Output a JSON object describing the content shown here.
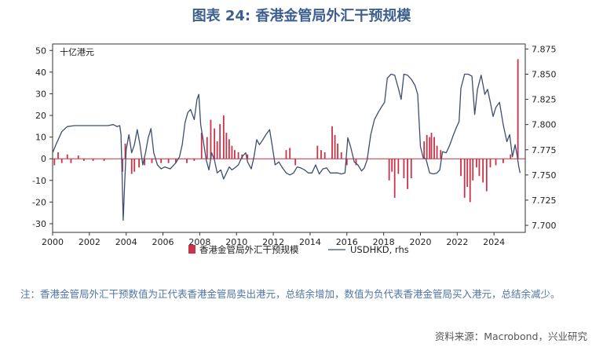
{
  "title": "图表 24: 香港金管局外汇干预规模",
  "note": "注：香港金管局外汇干预数值为正代表香港金管局卖出港元，总结余增加，数值为负代表香港金管局买入港元，总结余减少。",
  "source": "资料来源：Macrobond，兴业研究",
  "colors": {
    "bar": "#c9344a",
    "line": "#3d4e6e",
    "zero": "#cc2a3e",
    "frame": "#333333"
  },
  "chart_data": {
    "type": "bar+line",
    "unit_label": "十亿港元",
    "x_ticks": [
      "2000",
      "2002",
      "2004",
      "2006",
      "2008",
      "2010",
      "2012",
      "2014",
      "2016",
      "2018",
      "2020",
      "2022",
      "2024"
    ],
    "xlim": [
      2000,
      2025.7
    ],
    "y_left": {
      "ticks": [
        "50",
        "40",
        "30",
        "20",
        "10",
        "0",
        "-10",
        "-20",
        "-30"
      ],
      "lim": [
        -34,
        53
      ]
    },
    "y_right": {
      "ticks": [
        "7.875",
        "7.850",
        "7.825",
        "7.800",
        "7.775",
        "7.750",
        "7.725",
        "7.700"
      ],
      "lim": [
        7.693,
        7.88
      ]
    },
    "legend": [
      "香港金管局外汇干预规模",
      "USDHKD, rhs"
    ],
    "series": [
      {
        "name": "香港金管局外汇干预规模",
        "axis": "left",
        "kind": "bar",
        "points": [
          [
            2000.1,
            -3
          ],
          [
            2000.3,
            3
          ],
          [
            2000.5,
            -2
          ],
          [
            2000.8,
            2
          ],
          [
            2001.0,
            -2
          ],
          [
            2001.4,
            1.5
          ],
          [
            2001.7,
            -1
          ],
          [
            2002.2,
            -1
          ],
          [
            2002.8,
            -1
          ],
          [
            2003.8,
            -6
          ],
          [
            2003.95,
            7
          ],
          [
            2004.3,
            -7
          ],
          [
            2004.45,
            -6
          ],
          [
            2004.7,
            -4
          ],
          [
            2005.0,
            -3
          ],
          [
            2005.4,
            -2
          ],
          [
            2005.9,
            -2
          ],
          [
            2006.3,
            -2
          ],
          [
            2006.7,
            -2
          ],
          [
            2007.3,
            -2
          ],
          [
            2007.7,
            -1
          ],
          [
            2008.1,
            12
          ],
          [
            2008.4,
            10
          ],
          [
            2008.6,
            18
          ],
          [
            2008.8,
            14
          ],
          [
            2008.95,
            8
          ],
          [
            2009.1,
            16
          ],
          [
            2009.3,
            20
          ],
          [
            2009.45,
            12
          ],
          [
            2009.6,
            9
          ],
          [
            2009.75,
            6
          ],
          [
            2009.9,
            4
          ],
          [
            2010.1,
            3
          ],
          [
            2010.3,
            2
          ],
          [
            2010.6,
            2
          ],
          [
            2012.7,
            4
          ],
          [
            2012.9,
            5
          ],
          [
            2013.2,
            -3
          ],
          [
            2014.4,
            6
          ],
          [
            2014.6,
            4
          ],
          [
            2014.8,
            3
          ],
          [
            2015.2,
            15
          ],
          [
            2015.35,
            11
          ],
          [
            2015.5,
            7
          ],
          [
            2015.7,
            3
          ],
          [
            2016.0,
            -3
          ],
          [
            2016.5,
            -3
          ],
          [
            2018.3,
            -10
          ],
          [
            2018.45,
            -6
          ],
          [
            2018.6,
            -18
          ],
          [
            2018.8,
            -7
          ],
          [
            2019.1,
            -9
          ],
          [
            2019.3,
            -14
          ],
          [
            2019.5,
            -9
          ],
          [
            2020.2,
            8
          ],
          [
            2020.35,
            11
          ],
          [
            2020.5,
            10
          ],
          [
            2020.6,
            12
          ],
          [
            2020.75,
            10
          ],
          [
            2020.9,
            6
          ],
          [
            2021.1,
            4
          ],
          [
            2022.2,
            -8
          ],
          [
            2022.4,
            -18
          ],
          [
            2022.55,
            -13
          ],
          [
            2022.7,
            -20
          ],
          [
            2022.85,
            -10
          ],
          [
            2023.05,
            -4
          ],
          [
            2023.2,
            -8
          ],
          [
            2023.4,
            -11
          ],
          [
            2023.6,
            -15
          ],
          [
            2023.8,
            -4
          ],
          [
            2024.1,
            -3
          ],
          [
            2024.5,
            -2
          ],
          [
            2024.9,
            2
          ],
          [
            2025.3,
            46
          ]
        ]
      },
      {
        "name": "USDHKD, rhs",
        "axis": "right",
        "kind": "line",
        "points": [
          [
            2000.0,
            7.772
          ],
          [
            2000.2,
            7.781
          ],
          [
            2000.5,
            7.793
          ],
          [
            2000.8,
            7.798
          ],
          [
            2001.2,
            7.799
          ],
          [
            2001.6,
            7.799
          ],
          [
            2002.0,
            7.799
          ],
          [
            2002.5,
            7.799
          ],
          [
            2003.0,
            7.799
          ],
          [
            2003.3,
            7.8
          ],
          [
            2003.5,
            7.798
          ],
          [
            2003.65,
            7.799
          ],
          [
            2003.72,
            7.79
          ],
          [
            2003.78,
            7.75
          ],
          [
            2003.84,
            7.705
          ],
          [
            2003.92,
            7.742
          ],
          [
            2004.0,
            7.775
          ],
          [
            2004.15,
            7.79
          ],
          [
            2004.3,
            7.772
          ],
          [
            2004.45,
            7.78
          ],
          [
            2004.6,
            7.795
          ],
          [
            2004.75,
            7.78
          ],
          [
            2004.9,
            7.76
          ],
          [
            2005.05,
            7.772
          ],
          [
            2005.2,
            7.787
          ],
          [
            2005.35,
            7.796
          ],
          [
            2005.5,
            7.772
          ],
          [
            2005.7,
            7.76
          ],
          [
            2005.9,
            7.756
          ],
          [
            2006.1,
            7.758
          ],
          [
            2006.4,
            7.756
          ],
          [
            2006.7,
            7.762
          ],
          [
            2006.9,
            7.768
          ],
          [
            2007.05,
            7.78
          ],
          [
            2007.2,
            7.802
          ],
          [
            2007.35,
            7.812
          ],
          [
            2007.5,
            7.815
          ],
          [
            2007.7,
            7.805
          ],
          [
            2007.85,
            7.825
          ],
          [
            2007.95,
            7.83
          ],
          [
            2008.05,
            7.8
          ],
          [
            2008.2,
            7.783
          ],
          [
            2008.35,
            7.765
          ],
          [
            2008.5,
            7.755
          ],
          [
            2008.65,
            7.772
          ],
          [
            2008.8,
            7.765
          ],
          [
            2008.95,
            7.752
          ],
          [
            2009.15,
            7.755
          ],
          [
            2009.3,
            7.746
          ],
          [
            2009.45,
            7.752
          ],
          [
            2009.6,
            7.758
          ],
          [
            2009.75,
            7.755
          ],
          [
            2009.9,
            7.757
          ],
          [
            2010.1,
            7.76
          ],
          [
            2010.3,
            7.768
          ],
          [
            2010.5,
            7.772
          ],
          [
            2010.6,
            7.763
          ],
          [
            2010.8,
            7.756
          ],
          [
            2010.95,
            7.768
          ],
          [
            2011.1,
            7.785
          ],
          [
            2011.25,
            7.78
          ],
          [
            2011.4,
            7.784
          ],
          [
            2011.6,
            7.79
          ],
          [
            2011.8,
            7.795
          ],
          [
            2011.95,
            7.778
          ],
          [
            2012.1,
            7.76
          ],
          [
            2012.3,
            7.763
          ],
          [
            2012.5,
            7.757
          ],
          [
            2012.7,
            7.752
          ],
          [
            2012.9,
            7.75
          ],
          [
            2013.1,
            7.752
          ],
          [
            2013.3,
            7.758
          ],
          [
            2013.5,
            7.757
          ],
          [
            2013.7,
            7.755
          ],
          [
            2013.9,
            7.752
          ],
          [
            2014.1,
            7.752
          ],
          [
            2014.3,
            7.76
          ],
          [
            2014.5,
            7.751
          ],
          [
            2014.7,
            7.756
          ],
          [
            2014.9,
            7.757
          ],
          [
            2015.1,
            7.752
          ],
          [
            2015.3,
            7.752
          ],
          [
            2015.5,
            7.752
          ],
          [
            2015.7,
            7.751
          ],
          [
            2015.9,
            7.752
          ],
          [
            2016.05,
            7.787
          ],
          [
            2016.2,
            7.778
          ],
          [
            2016.4,
            7.763
          ],
          [
            2016.6,
            7.76
          ],
          [
            2016.8,
            7.754
          ],
          [
            2016.95,
            7.757
          ],
          [
            2017.1,
            7.765
          ],
          [
            2017.3,
            7.79
          ],
          [
            2017.5,
            7.805
          ],
          [
            2017.7,
            7.812
          ],
          [
            2017.9,
            7.818
          ],
          [
            2018.05,
            7.822
          ],
          [
            2018.2,
            7.846
          ],
          [
            2018.4,
            7.85
          ],
          [
            2018.6,
            7.849
          ],
          [
            2018.8,
            7.836
          ],
          [
            2018.95,
            7.825
          ],
          [
            2019.1,
            7.85
          ],
          [
            2019.3,
            7.849
          ],
          [
            2019.5,
            7.845
          ],
          [
            2019.7,
            7.839
          ],
          [
            2019.85,
            7.83
          ],
          [
            2020.0,
            7.778
          ],
          [
            2020.15,
            7.767
          ],
          [
            2020.3,
            7.766
          ],
          [
            2020.5,
            7.752
          ],
          [
            2020.7,
            7.751
          ],
          [
            2020.9,
            7.752
          ],
          [
            2021.05,
            7.755
          ],
          [
            2021.2,
            7.773
          ],
          [
            2021.4,
            7.772
          ],
          [
            2021.6,
            7.78
          ],
          [
            2021.8,
            7.79
          ],
          [
            2021.95,
            7.797
          ],
          [
            2022.1,
            7.803
          ],
          [
            2022.2,
            7.836
          ],
          [
            2022.4,
            7.85
          ],
          [
            2022.6,
            7.85
          ],
          [
            2022.8,
            7.848
          ],
          [
            2022.95,
            7.81
          ],
          [
            2023.1,
            7.835
          ],
          [
            2023.3,
            7.849
          ],
          [
            2023.5,
            7.83
          ],
          [
            2023.65,
            7.835
          ],
          [
            2023.8,
            7.822
          ],
          [
            2023.95,
            7.808
          ],
          [
            2024.1,
            7.817
          ],
          [
            2024.3,
            7.822
          ],
          [
            2024.5,
            7.8
          ],
          [
            2024.7,
            7.783
          ],
          [
            2024.85,
            7.79
          ],
          [
            2025.0,
            7.768
          ],
          [
            2025.15,
            7.78
          ],
          [
            2025.25,
            7.77
          ],
          [
            2025.35,
            7.758
          ],
          [
            2025.42,
            7.752
          ]
        ]
      }
    ]
  }
}
